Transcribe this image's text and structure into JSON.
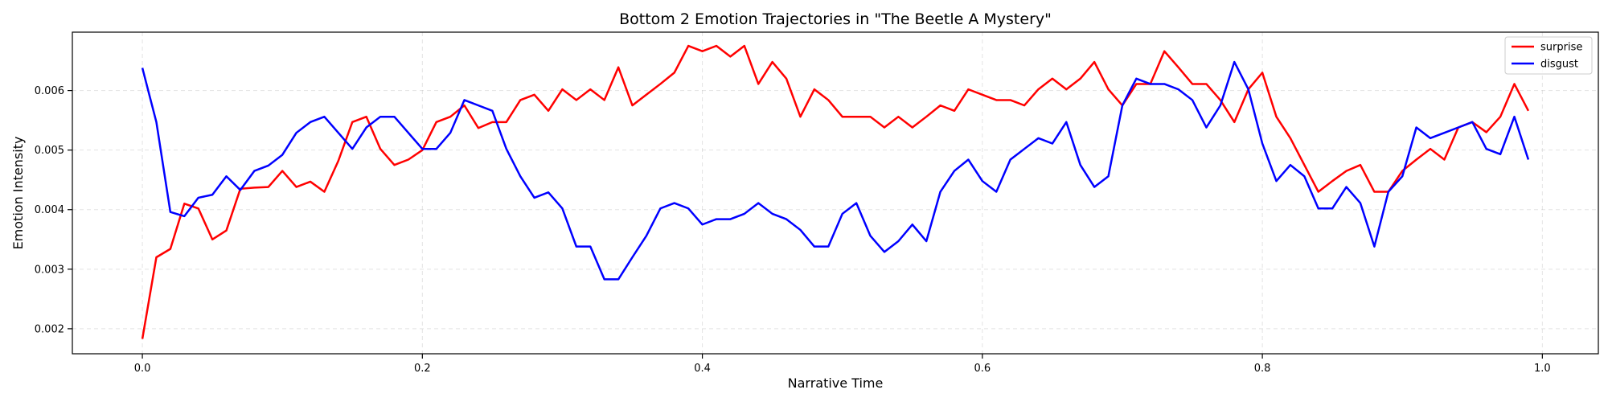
{
  "chart_data": {
    "type": "line",
    "title": "Bottom 2 Emotion Trajectories in \"The Beetle A Mystery\"",
    "xlabel": "Narrative Time",
    "ylabel": "Emotion Intensity",
    "xlim": [
      -0.05,
      1.04
    ],
    "ylim": [
      0.00158,
      0.00698
    ],
    "xticks": [
      0.0,
      0.2,
      0.4,
      0.6,
      0.8,
      1.0
    ],
    "xtick_labels": [
      "0.0",
      "0.2",
      "0.4",
      "0.6",
      "0.8",
      "1.0"
    ],
    "yticks": [
      0.002,
      0.003,
      0.004,
      0.005,
      0.006
    ],
    "ytick_labels": [
      "0.002",
      "0.003",
      "0.004",
      "0.005",
      "0.006"
    ],
    "grid": true,
    "legend_position": "top-right",
    "x": [
      0.0,
      0.01,
      0.02,
      0.03,
      0.04,
      0.05,
      0.06,
      0.07,
      0.08,
      0.09,
      0.1,
      0.11,
      0.12,
      0.13,
      0.14,
      0.15,
      0.16,
      0.17,
      0.18,
      0.19,
      0.2,
      0.21,
      0.22,
      0.23,
      0.24,
      0.25,
      0.26,
      0.27,
      0.28,
      0.29,
      0.3,
      0.31,
      0.32,
      0.33,
      0.34,
      0.35,
      0.36,
      0.37,
      0.38,
      0.39,
      0.4,
      0.41,
      0.42,
      0.43,
      0.44,
      0.45,
      0.46,
      0.47,
      0.48,
      0.49,
      0.5,
      0.51,
      0.52,
      0.53,
      0.54,
      0.55,
      0.56,
      0.57,
      0.58,
      0.59,
      0.6,
      0.61,
      0.62,
      0.63,
      0.64,
      0.65,
      0.66,
      0.67,
      0.68,
      0.69,
      0.7,
      0.71,
      0.72,
      0.73,
      0.74,
      0.75,
      0.76,
      0.77,
      0.78,
      0.79,
      0.8,
      0.81,
      0.82,
      0.83,
      0.84,
      0.85,
      0.86,
      0.87,
      0.88,
      0.89,
      0.9,
      0.91,
      0.92,
      0.93,
      0.94,
      0.95,
      0.96,
      0.97,
      0.98,
      0.99
    ],
    "series": [
      {
        "name": "surprise",
        "color": "#ff0000",
        "values": [
          0.00183,
          0.0032,
          0.00334,
          0.0041,
          0.00402,
          0.0035,
          0.00365,
          0.00435,
          0.00437,
          0.00438,
          0.00465,
          0.00438,
          0.00447,
          0.0043,
          0.00482,
          0.00547,
          0.00556,
          0.00502,
          0.00475,
          0.00484,
          0.005,
          0.00547,
          0.00556,
          0.00575,
          0.00537,
          0.00547,
          0.00547,
          0.00584,
          0.00593,
          0.00566,
          0.00602,
          0.00584,
          0.00602,
          0.00584,
          0.00639,
          0.00575,
          0.00593,
          0.00611,
          0.0063,
          0.00675,
          0.00666,
          0.00675,
          0.00657,
          0.00675,
          0.00611,
          0.00648,
          0.0062,
          0.00556,
          0.00602,
          0.00584,
          0.00556,
          0.00556,
          0.00556,
          0.00538,
          0.00556,
          0.00538,
          0.00556,
          0.00575,
          0.00566,
          0.00602,
          0.00593,
          0.00584,
          0.00584,
          0.00575,
          0.00602,
          0.0062,
          0.00602,
          0.0062,
          0.00648,
          0.00602,
          0.00575,
          0.00611,
          0.00611,
          0.00666,
          0.00639,
          0.00611,
          0.00611,
          0.00584,
          0.00547,
          0.00602,
          0.0063,
          0.00556,
          0.0052,
          0.00475,
          0.0043,
          0.00448,
          0.00465,
          0.00475,
          0.0043,
          0.0043,
          0.00465,
          0.00484,
          0.00502,
          0.00484,
          0.00538,
          0.00547,
          0.0053,
          0.00556,
          0.00611,
          0.00566
        ]
      },
      {
        "name": "disgust",
        "color": "#0000ff",
        "values": [
          0.00638,
          0.00547,
          0.00396,
          0.00389,
          0.0042,
          0.00425,
          0.00456,
          0.00433,
          0.00465,
          0.00474,
          0.00492,
          0.00529,
          0.00547,
          0.00556,
          0.00529,
          0.00502,
          0.00538,
          0.00556,
          0.00556,
          0.00529,
          0.00502,
          0.00502,
          0.00529,
          0.00584,
          0.00575,
          0.00566,
          0.00502,
          0.00456,
          0.0042,
          0.00429,
          0.00402,
          0.00338,
          0.00338,
          0.00283,
          0.00283,
          0.0032,
          0.00356,
          0.00402,
          0.00411,
          0.00402,
          0.00375,
          0.00384,
          0.00384,
          0.00393,
          0.00411,
          0.00393,
          0.00384,
          0.00366,
          0.00338,
          0.00338,
          0.00393,
          0.00411,
          0.00356,
          0.00329,
          0.00347,
          0.00375,
          0.00347,
          0.0043,
          0.00465,
          0.00484,
          0.00448,
          0.0043,
          0.00484,
          0.00502,
          0.0052,
          0.00511,
          0.00547,
          0.00475,
          0.00438,
          0.00456,
          0.00575,
          0.0062,
          0.00611,
          0.00611,
          0.00602,
          0.00584,
          0.00538,
          0.00575,
          0.00648,
          0.00602,
          0.00511,
          0.00448,
          0.00475,
          0.00456,
          0.00402,
          0.00402,
          0.00438,
          0.00411,
          0.00338,
          0.0043,
          0.00456,
          0.00538,
          0.0052,
          0.00529,
          0.00538,
          0.00547,
          0.00502,
          0.00493,
          0.00556,
          0.00484
        ]
      }
    ]
  }
}
